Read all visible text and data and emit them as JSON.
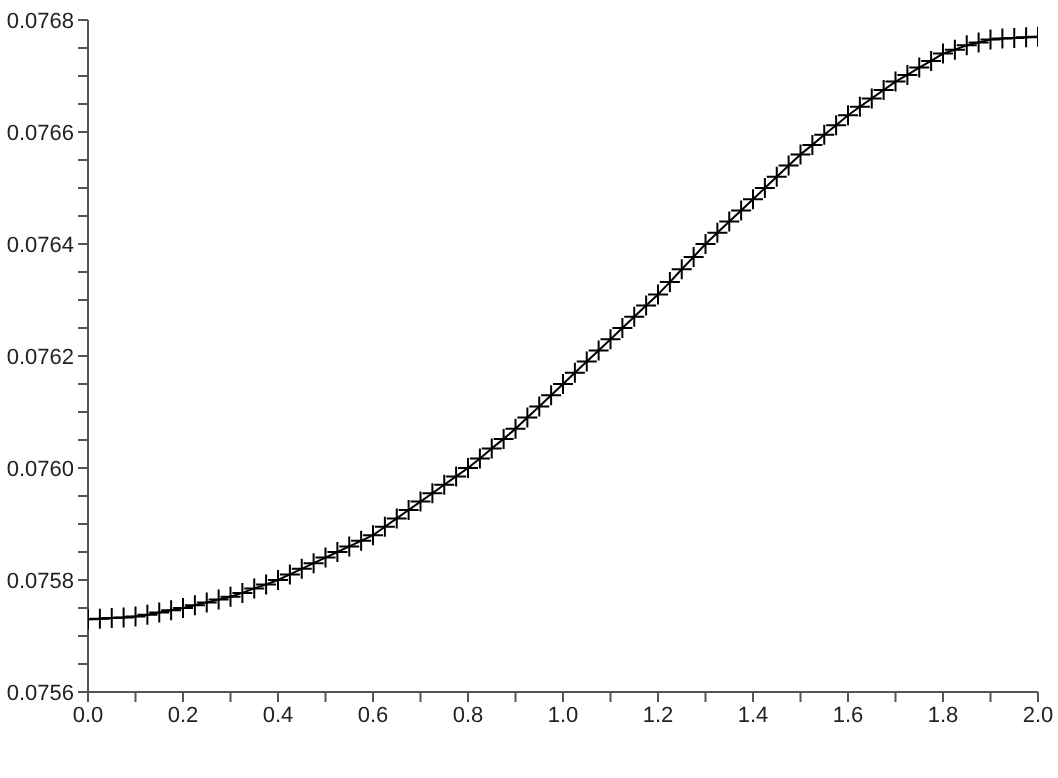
{
  "chart_data": {
    "type": "line",
    "marker": "cross",
    "line_style": "solid",
    "grid": false,
    "legend": false,
    "x": [
      0,
      0.025,
      0.05,
      0.075,
      0.1,
      0.125,
      0.15,
      0.175,
      0.2,
      0.225,
      0.25,
      0.275,
      0.3,
      0.325,
      0.35,
      0.375,
      0.4,
      0.425,
      0.45,
      0.475,
      0.5,
      0.525,
      0.55,
      0.575,
      0.6,
      0.625,
      0.65,
      0.675,
      0.7,
      0.725,
      0.75,
      0.775,
      0.8,
      0.825,
      0.85,
      0.875,
      0.9,
      0.925,
      0.95,
      0.975,
      1,
      1.025,
      1.05,
      1.075,
      1.1,
      1.125,
      1.15,
      1.175,
      1.2,
      1.225,
      1.25,
      1.275,
      1.3,
      1.325,
      1.35,
      1.375,
      1.4,
      1.425,
      1.45,
      1.475,
      1.5,
      1.525,
      1.55,
      1.575,
      1.6,
      1.625,
      1.65,
      1.675,
      1.7,
      1.725,
      1.75,
      1.775,
      1.8,
      1.825,
      1.85,
      1.875,
      1.9,
      1.925,
      1.95,
      1.975,
      2
    ],
    "series": [
      {
        "color": "#000000",
        "values": [
          0.07573,
          0.075731,
          0.075732,
          0.075733,
          0.075735,
          0.075738,
          0.075742,
          0.075746,
          0.07575,
          0.075755,
          0.07576,
          0.075765,
          0.07577,
          0.075777,
          0.075785,
          0.075792,
          0.0758,
          0.07581,
          0.07582,
          0.07583,
          0.07584,
          0.07585,
          0.07586,
          0.07587,
          0.07588,
          0.075895,
          0.07591,
          0.075925,
          0.07594,
          0.075955,
          0.07597,
          0.075985,
          0.076,
          0.076017,
          0.076035,
          0.076052,
          0.07607,
          0.07609,
          0.07611,
          0.07613,
          0.07615,
          0.07617,
          0.07619,
          0.07621,
          0.07623,
          0.07625,
          0.07627,
          0.07629,
          0.07631,
          0.076332,
          0.076355,
          0.076377,
          0.0764,
          0.07642,
          0.07644,
          0.07646,
          0.07648,
          0.0765,
          0.07652,
          0.07654,
          0.07656,
          0.076577,
          0.076595,
          0.076612,
          0.07663,
          0.076645,
          0.07666,
          0.076675,
          0.07669,
          0.076702,
          0.076715,
          0.076727,
          0.07674,
          0.076747,
          0.076755,
          0.07676,
          0.076765,
          0.076767,
          0.076768,
          0.076769,
          0.07677
        ]
      }
    ],
    "xlim": [
      0,
      2
    ],
    "xticks": [
      {
        "value": 0,
        "label": "0.0"
      },
      {
        "value": 0.1,
        "label": null
      },
      0.2,
      {
        "value": 0.3,
        "label": null
      },
      0.4,
      {
        "value": 0.5,
        "label": null
      },
      0.6,
      {
        "value": 0.7,
        "label": null
      },
      0.8,
      {
        "value": 0.9,
        "label": null
      },
      {
        "value": 1,
        "label": "1.0"
      },
      {
        "value": 1.1,
        "label": null
      },
      1.2,
      {
        "value": 1.3,
        "label": null
      },
      1.4,
      {
        "value": 1.5,
        "label": null
      },
      1.6,
      {
        "value": 1.7,
        "label": null
      },
      1.8,
      {
        "value": 1.9,
        "label": null
      },
      {
        "value": 2,
        "label": "2.0"
      }
    ],
    "ylim": [
      0.0756,
      0.0768
    ],
    "yticks": [
      {
        "value": 0.0756,
        "label": "0.0756"
      },
      {
        "value": 0.07565,
        "label": null
      },
      {
        "value": 0.0757,
        "label": null
      },
      {
        "value": 0.07575,
        "label": null
      },
      {
        "value": 0.0758,
        "label": "0.0758"
      },
      {
        "value": 0.07585,
        "label": null
      },
      {
        "value": 0.0759,
        "label": null
      },
      {
        "value": 0.07595,
        "label": null
      },
      {
        "value": 0.076,
        "label": "0.0760"
      },
      {
        "value": 0.07605,
        "label": null
      },
      {
        "value": 0.0761,
        "label": null
      },
      {
        "value": 0.07615,
        "label": null
      },
      {
        "value": 0.0762,
        "label": "0.0762"
      },
      {
        "value": 0.07625,
        "label": null
      },
      {
        "value": 0.0763,
        "label": null
      },
      {
        "value": 0.07635,
        "label": null
      },
      {
        "value": 0.0764,
        "label": "0.0764"
      },
      {
        "value": 0.07645,
        "label": null
      },
      {
        "value": 0.0765,
        "label": null
      },
      {
        "value": 0.07655,
        "label": null
      },
      {
        "value": 0.0766,
        "label": "0.0766"
      },
      {
        "value": 0.07665,
        "label": null
      },
      {
        "value": 0.0767,
        "label": null
      },
      {
        "value": 0.07675,
        "label": null
      },
      {
        "value": 0.0768,
        "label": "0.0768"
      }
    ]
  }
}
